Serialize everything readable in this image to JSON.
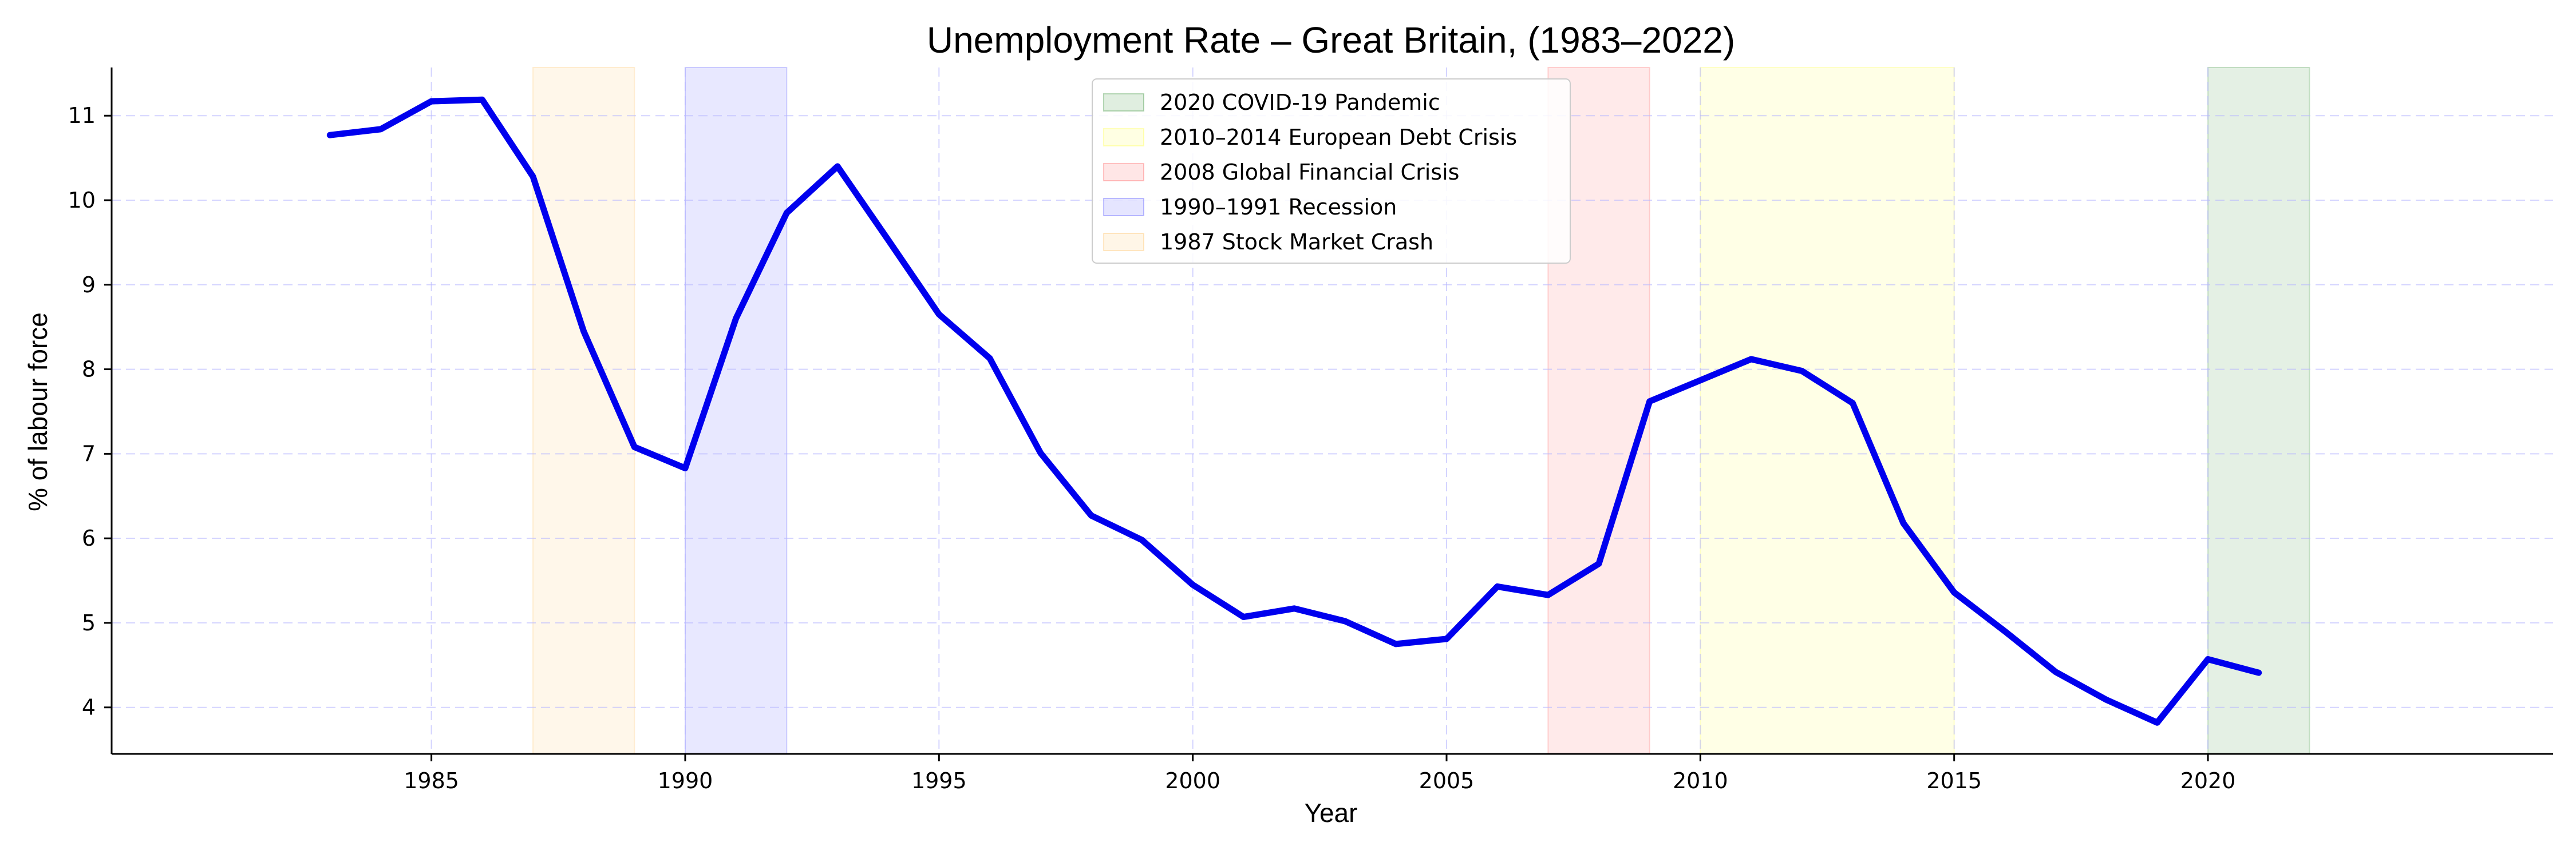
{
  "chart_data": {
    "type": "line",
    "title": "Unemployment Rate – Great Britain, (1983–2022)",
    "xlabel": "Year",
    "ylabel": "% of labour force",
    "xlim": [
      1978.7,
      2026.8
    ],
    "ylim": [
      3.45,
      11.57
    ],
    "xticks": [
      1985,
      1990,
      1995,
      2000,
      2005,
      2010,
      2015,
      2020
    ],
    "yticks": [
      4,
      5,
      6,
      7,
      8,
      9,
      10,
      11
    ],
    "grid": true,
    "legend_position": "top-center",
    "series": [
      {
        "color": "#0000ee",
        "x": [
          1983,
          1984,
          1985,
          1986,
          1987,
          1988,
          1989,
          1990,
          1991,
          1992,
          1993,
          1994,
          1995,
          1996,
          1997,
          1998,
          1999,
          2000,
          2001,
          2002,
          2003,
          2004,
          2005,
          2006,
          2007,
          2008,
          2009,
          2010,
          2011,
          2012,
          2013,
          2014,
          2015,
          2016,
          2017,
          2018,
          2019,
          2020,
          2021
        ],
        "values": [
          10.77,
          10.84,
          11.17,
          11.19,
          10.28,
          8.45,
          7.08,
          6.83,
          8.6,
          9.85,
          10.4,
          9.53,
          8.65,
          8.13,
          7.01,
          6.27,
          5.98,
          5.45,
          5.07,
          5.17,
          5.02,
          4.75,
          4.81,
          5.43,
          5.33,
          5.7,
          7.62,
          7.87,
          8.12,
          7.98,
          7.6,
          6.18,
          5.36,
          4.9,
          4.42,
          4.09,
          3.82,
          4.57,
          4.41
        ]
      }
    ],
    "shaded_periods": [
      {
        "label": "2020 COVID-19 Pandemic",
        "start": 2020,
        "end": 2022,
        "color": "#2e8b2e"
      },
      {
        "label": "2010–2014 European Debt Crisis",
        "start": 2010,
        "end": 2015,
        "color": "#ffff40"
      },
      {
        "label": "2008 Global Financial Crisis",
        "start": 2007,
        "end": 2009,
        "color": "#ff5a5a"
      },
      {
        "label": "1990–1991 Recession",
        "start": 1990,
        "end": 1992,
        "color": "#5050ff"
      },
      {
        "label": "1987 Stock Market Crash",
        "start": 1987,
        "end": 1989,
        "color": "#ffc060"
      }
    ]
  }
}
